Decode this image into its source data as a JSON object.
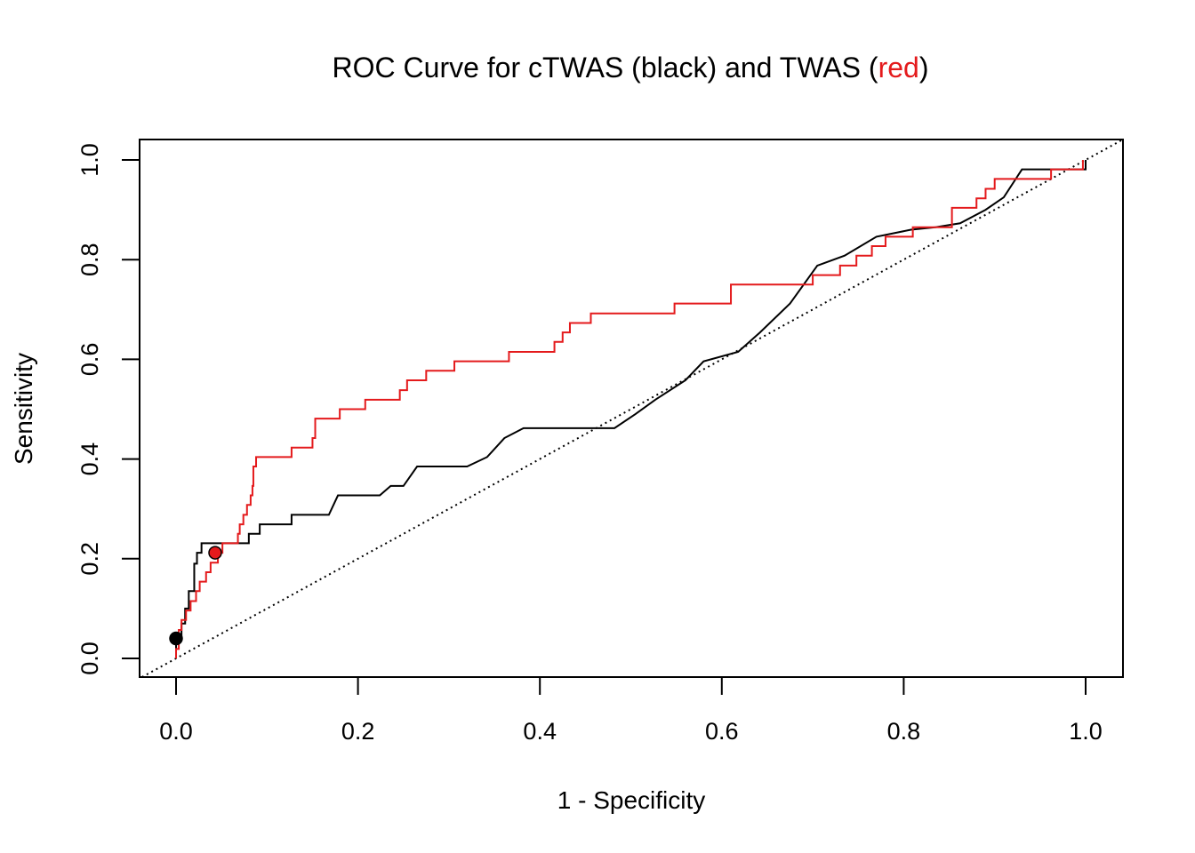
{
  "chart_data": {
    "type": "line",
    "title": {
      "prefix": "ROC Curve for cTWAS (black) and TWAS (",
      "highlight": "red",
      "suffix": ")",
      "highlight_color": "#e41a1c"
    },
    "xlabel": "1 - Specificity",
    "ylabel": "Sensitivity",
    "xlim": [
      0.0,
      1.0
    ],
    "ylim": [
      0.0,
      1.0
    ],
    "x_ticks": [
      "0.0",
      "0.2",
      "0.4",
      "0.6",
      "0.8",
      "1.0"
    ],
    "y_ticks": [
      "0.0",
      "0.2",
      "0.4",
      "0.6",
      "0.8",
      "1.0"
    ],
    "grid": false,
    "legend": "none",
    "reference_line": {
      "points": [
        [
          0,
          0
        ],
        [
          1,
          1
        ]
      ],
      "style": "dotted",
      "color": "#000000"
    },
    "series": [
      {
        "color": "#000000",
        "points": [
          [
            0.0,
            0.0
          ],
          [
            0.0,
            0.04
          ],
          [
            0.006,
            0.04
          ],
          [
            0.006,
            0.07
          ],
          [
            0.01,
            0.07
          ],
          [
            0.01,
            0.1
          ],
          [
            0.014,
            0.1
          ],
          [
            0.014,
            0.135
          ],
          [
            0.02,
            0.135
          ],
          [
            0.02,
            0.19
          ],
          [
            0.023,
            0.19
          ],
          [
            0.023,
            0.212
          ],
          [
            0.028,
            0.212
          ],
          [
            0.028,
            0.231
          ],
          [
            0.08,
            0.231
          ],
          [
            0.08,
            0.25
          ],
          [
            0.092,
            0.25
          ],
          [
            0.092,
            0.269
          ],
          [
            0.127,
            0.269
          ],
          [
            0.127,
            0.288
          ],
          [
            0.168,
            0.288
          ],
          [
            0.178,
            0.327
          ],
          [
            0.224,
            0.327
          ],
          [
            0.236,
            0.346
          ],
          [
            0.25,
            0.346
          ],
          [
            0.265,
            0.385
          ],
          [
            0.32,
            0.385
          ],
          [
            0.342,
            0.404
          ],
          [
            0.361,
            0.442
          ],
          [
            0.382,
            0.462
          ],
          [
            0.482,
            0.462
          ],
          [
            0.505,
            0.49
          ],
          [
            0.527,
            0.519
          ],
          [
            0.56,
            0.558
          ],
          [
            0.58,
            0.596
          ],
          [
            0.618,
            0.615
          ],
          [
            0.642,
            0.654
          ],
          [
            0.675,
            0.712
          ],
          [
            0.705,
            0.788
          ],
          [
            0.735,
            0.808
          ],
          [
            0.77,
            0.846
          ],
          [
            0.808,
            0.86
          ],
          [
            0.835,
            0.865
          ],
          [
            0.862,
            0.873
          ],
          [
            0.89,
            0.9
          ],
          [
            0.91,
            0.925
          ],
          [
            0.93,
            0.981
          ],
          [
            1.0,
            0.981
          ],
          [
            1.0,
            1.0
          ]
        ],
        "markers": [
          {
            "x": 0.0,
            "y": 0.04
          }
        ]
      },
      {
        "color": "#e41a1c",
        "points": [
          [
            0.0,
            0.0
          ],
          [
            0.0,
            0.019
          ],
          [
            0.003,
            0.019
          ],
          [
            0.003,
            0.057
          ],
          [
            0.006,
            0.057
          ],
          [
            0.006,
            0.077
          ],
          [
            0.011,
            0.077
          ],
          [
            0.011,
            0.096
          ],
          [
            0.016,
            0.096
          ],
          [
            0.016,
            0.115
          ],
          [
            0.022,
            0.115
          ],
          [
            0.022,
            0.135
          ],
          [
            0.026,
            0.135
          ],
          [
            0.026,
            0.154
          ],
          [
            0.033,
            0.154
          ],
          [
            0.033,
            0.173
          ],
          [
            0.038,
            0.173
          ],
          [
            0.038,
            0.192
          ],
          [
            0.046,
            0.192
          ],
          [
            0.046,
            0.212
          ],
          [
            0.051,
            0.212
          ],
          [
            0.051,
            0.231
          ],
          [
            0.068,
            0.231
          ],
          [
            0.068,
            0.25
          ],
          [
            0.07,
            0.25
          ],
          [
            0.07,
            0.269
          ],
          [
            0.074,
            0.269
          ],
          [
            0.074,
            0.288
          ],
          [
            0.078,
            0.288
          ],
          [
            0.078,
            0.308
          ],
          [
            0.082,
            0.308
          ],
          [
            0.082,
            0.327
          ],
          [
            0.084,
            0.327
          ],
          [
            0.084,
            0.346
          ],
          [
            0.085,
            0.346
          ],
          [
            0.085,
            0.385
          ],
          [
            0.088,
            0.385
          ],
          [
            0.088,
            0.404
          ],
          [
            0.127,
            0.404
          ],
          [
            0.127,
            0.423
          ],
          [
            0.15,
            0.423
          ],
          [
            0.15,
            0.442
          ],
          [
            0.153,
            0.442
          ],
          [
            0.153,
            0.481
          ],
          [
            0.18,
            0.481
          ],
          [
            0.18,
            0.5
          ],
          [
            0.208,
            0.5
          ],
          [
            0.208,
            0.519
          ],
          [
            0.246,
            0.519
          ],
          [
            0.246,
            0.538
          ],
          [
            0.254,
            0.538
          ],
          [
            0.254,
            0.558
          ],
          [
            0.275,
            0.558
          ],
          [
            0.275,
            0.577
          ],
          [
            0.306,
            0.577
          ],
          [
            0.306,
            0.596
          ],
          [
            0.366,
            0.596
          ],
          [
            0.366,
            0.615
          ],
          [
            0.416,
            0.615
          ],
          [
            0.416,
            0.635
          ],
          [
            0.425,
            0.635
          ],
          [
            0.425,
            0.654
          ],
          [
            0.433,
            0.654
          ],
          [
            0.433,
            0.673
          ],
          [
            0.456,
            0.673
          ],
          [
            0.456,
            0.692
          ],
          [
            0.548,
            0.692
          ],
          [
            0.548,
            0.712
          ],
          [
            0.61,
            0.712
          ],
          [
            0.61,
            0.75
          ],
          [
            0.7,
            0.75
          ],
          [
            0.7,
            0.769
          ],
          [
            0.73,
            0.769
          ],
          [
            0.73,
            0.788
          ],
          [
            0.748,
            0.788
          ],
          [
            0.748,
            0.808
          ],
          [
            0.765,
            0.808
          ],
          [
            0.765,
            0.827
          ],
          [
            0.78,
            0.827
          ],
          [
            0.78,
            0.846
          ],
          [
            0.81,
            0.846
          ],
          [
            0.81,
            0.865
          ],
          [
            0.853,
            0.865
          ],
          [
            0.853,
            0.904
          ],
          [
            0.88,
            0.904
          ],
          [
            0.88,
            0.923
          ],
          [
            0.89,
            0.923
          ],
          [
            0.89,
            0.942
          ],
          [
            0.9,
            0.942
          ],
          [
            0.9,
            0.962
          ],
          [
            0.962,
            0.962
          ],
          [
            0.962,
            0.981
          ],
          [
            0.997,
            0.981
          ],
          [
            0.997,
            1.0
          ]
        ],
        "markers": [
          {
            "x": 0.043,
            "y": 0.212
          }
        ]
      }
    ]
  }
}
